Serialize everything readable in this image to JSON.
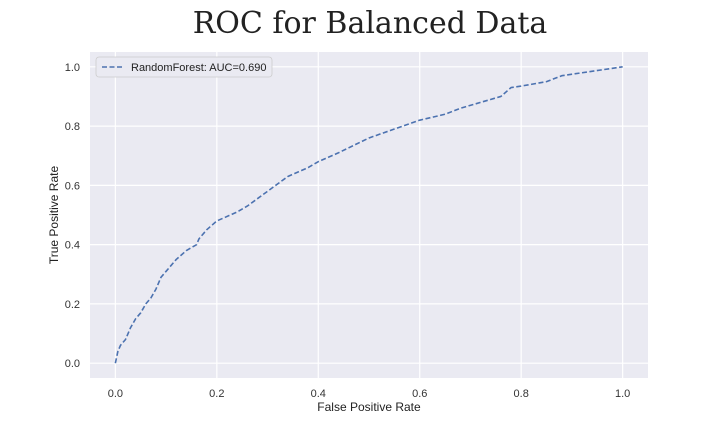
{
  "chart_data": {
    "type": "line",
    "title": "ROC for Balanced Data",
    "xlabel": "False Positive Rate",
    "ylabel": "True Positive Rate",
    "xlim": [
      -0.05,
      1.05
    ],
    "ylim": [
      -0.05,
      1.05
    ],
    "x_ticks": [
      "0.0",
      "0.2",
      "0.4",
      "0.6",
      "0.8",
      "1.0"
    ],
    "y_ticks": [
      "0.0",
      "0.2",
      "0.4",
      "0.6",
      "0.8",
      "1.0"
    ],
    "grid": true,
    "legend_position": "top-left",
    "series": [
      {
        "name": "RandomForest: AUC=0.690",
        "line_style": "dashed",
        "color": "#4C72B0",
        "x": [
          0.0,
          0.005,
          0.01,
          0.02,
          0.03,
          0.04,
          0.05,
          0.06,
          0.07,
          0.08,
          0.085,
          0.09,
          0.1,
          0.12,
          0.14,
          0.16,
          0.165,
          0.18,
          0.2,
          0.24,
          0.26,
          0.3,
          0.34,
          0.38,
          0.4,
          0.44,
          0.5,
          0.55,
          0.6,
          0.65,
          0.68,
          0.72,
          0.76,
          0.78,
          0.8,
          0.85,
          0.88,
          0.92,
          0.96,
          1.0
        ],
        "y": [
          0.0,
          0.04,
          0.06,
          0.08,
          0.12,
          0.15,
          0.17,
          0.2,
          0.22,
          0.25,
          0.27,
          0.29,
          0.31,
          0.35,
          0.38,
          0.4,
          0.42,
          0.45,
          0.48,
          0.51,
          0.53,
          0.58,
          0.63,
          0.66,
          0.68,
          0.71,
          0.76,
          0.79,
          0.82,
          0.84,
          0.86,
          0.88,
          0.9,
          0.93,
          0.935,
          0.95,
          0.97,
          0.98,
          0.99,
          1.0
        ]
      }
    ]
  }
}
